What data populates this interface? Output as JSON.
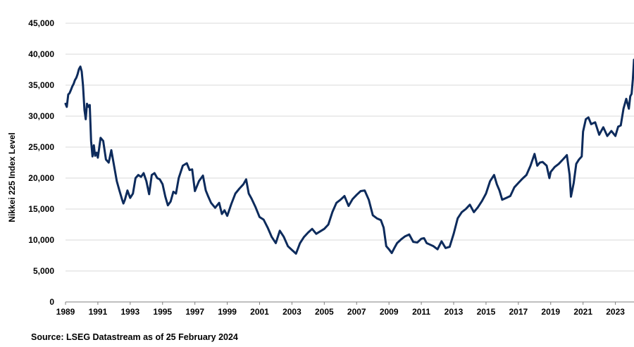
{
  "chart_data": {
    "type": "line",
    "title": "",
    "xlabel": "",
    "ylabel": "Nikkei 225 Index Level",
    "xlim": [
      1989.0,
      2024.15
    ],
    "ylim": [
      0,
      45000
    ],
    "y_ticks": [
      0,
      5000,
      10000,
      15000,
      20000,
      25000,
      30000,
      35000,
      40000,
      45000
    ],
    "y_tick_labels": [
      "0",
      "5,000",
      "10,000",
      "15,000",
      "20,000",
      "25,000",
      "30,000",
      "35,000",
      "40,000",
      "45,000"
    ],
    "x_ticks": [
      1989,
      1991,
      1993,
      1995,
      1997,
      1999,
      2001,
      2003,
      2005,
      2007,
      2009,
      2011,
      2013,
      2015,
      2017,
      2019,
      2021,
      2023
    ],
    "x_tick_labels": [
      "1989",
      "1991",
      "1993",
      "1995",
      "1997",
      "1999",
      "2001",
      "2003",
      "2005",
      "2007",
      "2009",
      "2011",
      "2013",
      "2015",
      "2017",
      "2019",
      "2021",
      "2023"
    ],
    "grid": "horizontal",
    "line_color": "#0d2b5c",
    "series": [
      {
        "x": [
          1989.0,
          1989.08,
          1989.17,
          1989.25,
          1989.33,
          1989.42,
          1989.5,
          1989.58,
          1989.67,
          1989.75,
          1989.83,
          1989.92,
          1990.0,
          1990.08,
          1990.17,
          1990.25,
          1990.33,
          1990.42,
          1990.5,
          1990.58,
          1990.67,
          1990.75,
          1990.83,
          1990.92,
          1991.0,
          1991.17,
          1991.33,
          1991.5,
          1991.67,
          1991.83,
          1992.0,
          1992.17,
          1992.33,
          1992.5,
          1992.58,
          1992.67,
          1992.83,
          1993.0,
          1993.17,
          1993.33,
          1993.5,
          1993.67,
          1993.83,
          1994.0,
          1994.17,
          1994.33,
          1994.5,
          1994.67,
          1994.83,
          1995.0,
          1995.17,
          1995.33,
          1995.5,
          1995.67,
          1995.83,
          1996.0,
          1996.25,
          1996.5,
          1996.67,
          1996.83,
          1997.0,
          1997.25,
          1997.5,
          1997.67,
          1997.83,
          1998.0,
          1998.25,
          1998.5,
          1998.67,
          1998.83,
          1999.0,
          1999.25,
          1999.5,
          1999.75,
          2000.0,
          2000.17,
          2000.33,
          2000.5,
          2000.75,
          2001.0,
          2001.25,
          2001.5,
          2001.75,
          2002.0,
          2002.25,
          2002.5,
          2002.75,
          2003.0,
          2003.25,
          2003.5,
          2003.75,
          2004.0,
          2004.25,
          2004.5,
          2004.75,
          2005.0,
          2005.25,
          2005.5,
          2005.75,
          2006.0,
          2006.25,
          2006.5,
          2006.75,
          2007.0,
          2007.25,
          2007.5,
          2007.75,
          2008.0,
          2008.25,
          2008.5,
          2008.67,
          2008.83,
          2009.0,
          2009.17,
          2009.33,
          2009.5,
          2009.75,
          2010.0,
          2010.25,
          2010.5,
          2010.75,
          2011.0,
          2011.17,
          2011.33,
          2011.5,
          2011.75,
          2012.0,
          2012.25,
          2012.5,
          2012.75,
          2013.0,
          2013.25,
          2013.5,
          2013.75,
          2014.0,
          2014.25,
          2014.5,
          2014.75,
          2015.0,
          2015.25,
          2015.5,
          2015.67,
          2015.83,
          2016.0,
          2016.25,
          2016.5,
          2016.75,
          2017.0,
          2017.25,
          2017.5,
          2017.75,
          2018.0,
          2018.17,
          2018.33,
          2018.5,
          2018.75,
          2018.92,
          2019.0,
          2019.25,
          2019.5,
          2019.75,
          2020.0,
          2020.17,
          2020.25,
          2020.42,
          2020.58,
          2020.75,
          2020.92,
          2021.0,
          2021.17,
          2021.33,
          2021.5,
          2021.75,
          2022.0,
          2022.25,
          2022.5,
          2022.75,
          2023.0,
          2023.17,
          2023.33,
          2023.5,
          2023.67,
          2023.83,
          2023.92,
          2024.0,
          2024.08,
          2024.15
        ],
        "y": [
          32000,
          31500,
          33500,
          33700,
          34200,
          34800,
          35200,
          35800,
          36200,
          36800,
          37600,
          38000,
          37200,
          35000,
          31000,
          29500,
          32000,
          31500,
          31800,
          26000,
          23500,
          25300,
          23600,
          24100,
          23300,
          26500,
          26000,
          23000,
          22500,
          24500,
          22000,
          19500,
          18000,
          16500,
          15900,
          16500,
          18000,
          16800,
          17500,
          20000,
          20500,
          20200,
          20800,
          19500,
          17400,
          20500,
          20800,
          20000,
          19800,
          19000,
          17000,
          15600,
          16200,
          17800,
          17500,
          20000,
          22000,
          22400,
          21300,
          21400,
          17900,
          19500,
          20400,
          18000,
          17000,
          16000,
          15200,
          16000,
          14200,
          14800,
          13900,
          15800,
          17500,
          18300,
          19000,
          19800,
          17500,
          16700,
          15300,
          13700,
          13300,
          12000,
          10500,
          9500,
          11500,
          10500,
          9000,
          8400,
          7800,
          9500,
          10500,
          11200,
          11800,
          11000,
          11400,
          11800,
          12500,
          14500,
          16000,
          16500,
          17100,
          15500,
          16600,
          17300,
          17900,
          18000,
          16500,
          14000,
          13500,
          13200,
          12000,
          9000,
          8500,
          7900,
          8700,
          9500,
          10100,
          10600,
          10900,
          9700,
          9600,
          10200,
          10300,
          9500,
          9300,
          9000,
          8500,
          9800,
          8700,
          8900,
          11000,
          13500,
          14500,
          15000,
          15700,
          14500,
          15300,
          16300,
          17500,
          19500,
          20500,
          19000,
          18000,
          16500,
          16800,
          17100,
          18500,
          19200,
          19900,
          20500,
          22000,
          23900,
          22000,
          22500,
          22600,
          22000,
          20000,
          21000,
          21800,
          22300,
          23000,
          23700,
          20500,
          17000,
          19200,
          22300,
          23000,
          23500,
          27500,
          29500,
          29800,
          28700,
          29000,
          27000,
          28200,
          26800,
          27600,
          26800,
          28300,
          28500,
          31200,
          32800,
          31200,
          33200,
          33600,
          36000,
          39100
        ]
      }
    ]
  },
  "source": "Source: LSEG Datastream as of 25 February 2024"
}
